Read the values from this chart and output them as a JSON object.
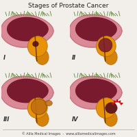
{
  "title": "Stages of Prostate Cancer",
  "title_fontsize": 6.5,
  "footer": "© Alila Medical Images  -  www.alilamedicalimages.com",
  "footer_fontsize": 3.5,
  "bg_color": "#f2efea",
  "stage_labels": [
    "I",
    "II",
    "III",
    "IV"
  ],
  "stage_label_fontsize": 6,
  "bladder_outer_color": "#d98a96",
  "bladder_inner_color": "#7a1a2e",
  "bladder_wall_color": "#c8737f",
  "prostate_color": "#e8920a",
  "prostate_edge_color": "#b06808",
  "seminal_color": "#d4820a",
  "tumor_small_color": "#5a0f1a",
  "tumor_large_color": "#7a1a2e",
  "tumor_stage3_color": "#c07010",
  "arrow_color": "#cc1111",
  "grass_color": "#6a8a45",
  "urethra_color": "#5a3010",
  "footer_color": "#444444",
  "title_color": "#222222",
  "label_color": "#333333",
  "panel_bg": "#f2efea"
}
